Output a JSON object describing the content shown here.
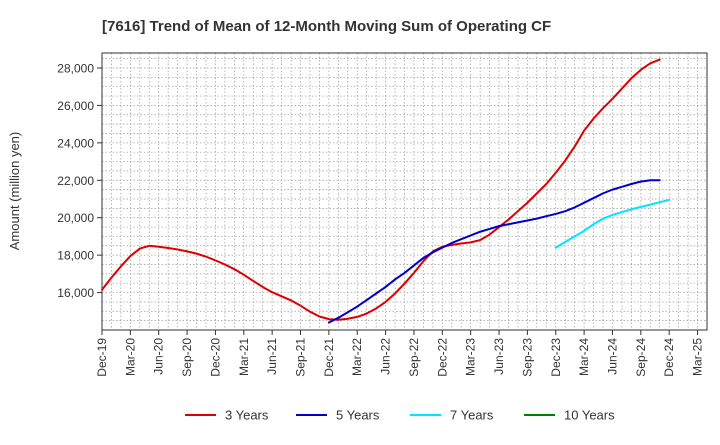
{
  "chart_data": {
    "type": "line",
    "title": "[7616]  Trend of Mean of 12-Month Moving Sum of Operating CF",
    "xlabel": "",
    "ylabel": "Amount (million yen)",
    "ylim": [
      14000,
      28800
    ],
    "yticks": [
      16000,
      18000,
      20000,
      22000,
      24000,
      26000,
      28000
    ],
    "ytick_labels": [
      "16,000",
      "18,000",
      "20,000",
      "22,000",
      "24,000",
      "26,000",
      "28,000"
    ],
    "xtick_labels": [
      "Dec-19",
      "Mar-20",
      "Jun-20",
      "Sep-20",
      "Dec-20",
      "Mar-21",
      "Jun-21",
      "Sep-21",
      "Dec-21",
      "Mar-22",
      "Jun-22",
      "Sep-22",
      "Dec-22",
      "Mar-23",
      "Jun-23",
      "Sep-23",
      "Dec-23",
      "Mar-24",
      "Jun-24",
      "Sep-24",
      "Dec-24",
      "Mar-25"
    ],
    "x_count": 64,
    "grid": true,
    "legend_position": "bottom",
    "series": [
      {
        "name": "3 Years",
        "color": "#dd0000",
        "start_index": 0,
        "values": [
          16150,
          16800,
          17400,
          17950,
          18350,
          18500,
          18450,
          18380,
          18300,
          18200,
          18080,
          17920,
          17720,
          17500,
          17250,
          16950,
          16620,
          16300,
          16020,
          15800,
          15580,
          15300,
          14980,
          14720,
          14580,
          14550,
          14600,
          14700,
          14880,
          15150,
          15500,
          15950,
          16480,
          17050,
          17680,
          18200,
          18450,
          18550,
          18620,
          18680,
          18800,
          19100,
          19500,
          19900,
          20350,
          20800,
          21300,
          21800,
          22400,
          23050,
          23800,
          24650,
          25300,
          25850,
          26350,
          26900,
          27450,
          27900,
          28250,
          28450
        ]
      },
      {
        "name": "5 Years",
        "color": "#0000cc",
        "start_index": 24,
        "values": [
          14400,
          14650,
          14950,
          15250,
          15600,
          15950,
          16300,
          16700,
          17050,
          17450,
          17850,
          18150,
          18400,
          18650,
          18850,
          19050,
          19250,
          19400,
          19550,
          19650,
          19750,
          19850,
          19950,
          20080,
          20200,
          20350,
          20550,
          20800,
          21050,
          21300,
          21500,
          21650,
          21800,
          21930,
          22000,
          22000
        ]
      },
      {
        "name": "7 Years",
        "color": "#00e5ff",
        "start_index": 48,
        "values": [
          18400,
          18700,
          19000,
          19300,
          19650,
          19950,
          20150,
          20300,
          20450,
          20580,
          20700,
          20830,
          20950
        ]
      },
      {
        "name": "10 Years",
        "color": "#008000",
        "start_index": 0,
        "values": []
      }
    ]
  }
}
